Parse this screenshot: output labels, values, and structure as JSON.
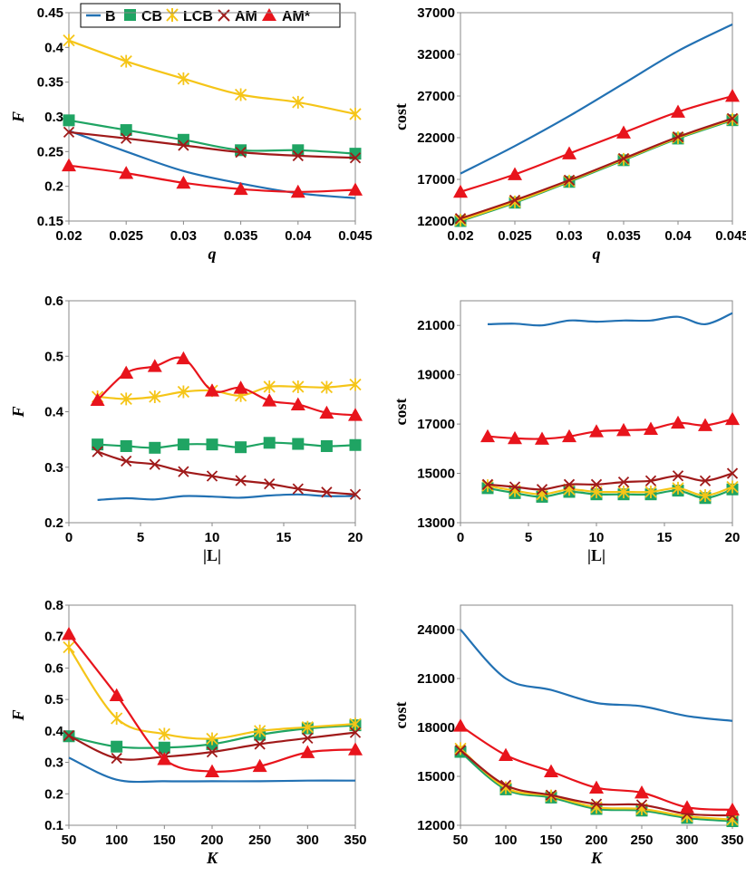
{
  "colors": {
    "B": "#2271b3",
    "CB": "#1fa463",
    "LCB": "#f5c518",
    "AM": "#a01a1a",
    "AMstar": "#e8141c"
  },
  "legend": {
    "items": [
      {
        "key": "B",
        "label": "B"
      },
      {
        "key": "CB",
        "label": "CB"
      },
      {
        "key": "LCB",
        "label": "LCB"
      },
      {
        "key": "AM",
        "label": "AM"
      },
      {
        "key": "AMstar",
        "label": "AM*"
      }
    ]
  },
  "chart_data": [
    {
      "id": "q-F",
      "type": "line",
      "xlabel": "q",
      "ylabel": "F",
      "xlim": [
        0.02,
        0.045
      ],
      "ylim": [
        0.15,
        0.45
      ],
      "xticks": [
        "0.02",
        "0.025",
        "0.03",
        "0.035",
        "0.04",
        "0.045"
      ],
      "yticks": [
        "0.15",
        "0.2",
        "0.25",
        "0.3",
        "0.35",
        "0.4",
        "0.45"
      ],
      "x": [
        0.02,
        0.025,
        0.03,
        0.035,
        0.04,
        0.045
      ],
      "series": [
        {
          "name": "B",
          "values": [
            0.28,
            0.25,
            0.222,
            0.204,
            0.19,
            0.183
          ]
        },
        {
          "name": "CB",
          "values": [
            0.295,
            0.281,
            0.267,
            0.252,
            0.252,
            0.247
          ]
        },
        {
          "name": "LCB",
          "values": [
            0.41,
            0.38,
            0.355,
            0.332,
            0.321,
            0.304
          ]
        },
        {
          "name": "AM",
          "values": [
            0.278,
            0.269,
            0.259,
            0.249,
            0.244,
            0.241
          ]
        },
        {
          "name": "AM*",
          "values": [
            0.23,
            0.219,
            0.205,
            0.196,
            0.192,
            0.195
          ]
        }
      ]
    },
    {
      "id": "q-cost",
      "type": "line",
      "xlabel": "q",
      "ylabel": "cost",
      "xlim": [
        0.02,
        0.045
      ],
      "ylim": [
        12000,
        37000
      ],
      "xticks": [
        "0.02",
        "0.025",
        "0.03",
        "0.035",
        "0.04",
        "0.045"
      ],
      "yticks": [
        "12000",
        "17000",
        "22000",
        "27000",
        "32000",
        "37000"
      ],
      "x": [
        0.02,
        0.025,
        0.03,
        0.035,
        0.04,
        0.045
      ],
      "series": [
        {
          "name": "B",
          "values": [
            17700,
            21000,
            24600,
            28500,
            32400,
            35600
          ]
        },
        {
          "name": "CB",
          "values": [
            12000,
            14200,
            16700,
            19300,
            21900,
            24100
          ]
        },
        {
          "name": "LCB",
          "values": [
            12100,
            14300,
            16800,
            19400,
            22000,
            24200
          ]
        },
        {
          "name": "AM",
          "values": [
            12300,
            14500,
            16900,
            19500,
            22100,
            24300
          ]
        },
        {
          "name": "AM*",
          "values": [
            15500,
            17600,
            20100,
            22600,
            25100,
            27000
          ]
        }
      ]
    },
    {
      "id": "L-F",
      "type": "line",
      "xlabel": "|L|",
      "ylabel": "F",
      "xlim": [
        0,
        20
      ],
      "ylim": [
        0.2,
        0.6
      ],
      "xticks": [
        "0",
        "5",
        "10",
        "15",
        "20"
      ],
      "yticks": [
        "0.2",
        "0.3",
        "0.4",
        "0.5",
        "0.6"
      ],
      "x": [
        2,
        4,
        6,
        8,
        10,
        12,
        14,
        16,
        18,
        20
      ],
      "series": [
        {
          "name": "B",
          "values": [
            0.241,
            0.244,
            0.242,
            0.248,
            0.247,
            0.245,
            0.249,
            0.251,
            0.248,
            0.248
          ]
        },
        {
          "name": "CB",
          "values": [
            0.341,
            0.338,
            0.335,
            0.341,
            0.341,
            0.336,
            0.344,
            0.342,
            0.338,
            0.34
          ]
        },
        {
          "name": "LCB",
          "values": [
            0.427,
            0.423,
            0.427,
            0.436,
            0.438,
            0.429,
            0.445,
            0.445,
            0.444,
            0.449
          ]
        },
        {
          "name": "AM",
          "values": [
            0.328,
            0.311,
            0.305,
            0.292,
            0.284,
            0.276,
            0.27,
            0.261,
            0.255,
            0.251
          ]
        },
        {
          "name": "AM*",
          "values": [
            0.421,
            0.47,
            0.482,
            0.496,
            0.438,
            0.443,
            0.42,
            0.413,
            0.398,
            0.394
          ]
        }
      ]
    },
    {
      "id": "L-cost",
      "type": "line",
      "xlabel": "|L|",
      "ylabel": "cost",
      "xlim": [
        0,
        20
      ],
      "ylim": [
        13000,
        22000
      ],
      "xticks": [
        "0",
        "5",
        "10",
        "15",
        "20"
      ],
      "yticks": [
        "13000",
        "15000",
        "17000",
        "19000",
        "21000"
      ],
      "x": [
        2,
        4,
        6,
        8,
        10,
        12,
        14,
        16,
        18,
        20
      ],
      "series": [
        {
          "name": "B",
          "values": [
            21050,
            21070,
            21000,
            21200,
            21150,
            21200,
            21200,
            21350,
            21050,
            21500
          ]
        },
        {
          "name": "CB",
          "values": [
            14400,
            14200,
            14050,
            14250,
            14150,
            14150,
            14150,
            14300,
            14000,
            14350
          ]
        },
        {
          "name": "LCB",
          "values": [
            14500,
            14300,
            14150,
            14350,
            14250,
            14250,
            14250,
            14400,
            14100,
            14450
          ]
        },
        {
          "name": "AM",
          "values": [
            14550,
            14450,
            14350,
            14550,
            14550,
            14650,
            14700,
            14900,
            14700,
            15000
          ]
        },
        {
          "name": "AM*",
          "values": [
            16500,
            16420,
            16400,
            16500,
            16700,
            16750,
            16800,
            17050,
            16950,
            17200
          ]
        }
      ]
    },
    {
      "id": "K-F",
      "type": "line",
      "xlabel": "K",
      "ylabel": "F",
      "xlim": [
        50,
        350
      ],
      "ylim": [
        0.1,
        0.8
      ],
      "xticks": [
        "50",
        "100",
        "150",
        "200",
        "250",
        "300",
        "350"
      ],
      "yticks": [
        "0.1",
        "0.2",
        "0.3",
        "0.4",
        "0.5",
        "0.6",
        "0.7",
        "0.8"
      ],
      "x": [
        50,
        100,
        150,
        200,
        250,
        300,
        350
      ],
      "series": [
        {
          "name": "B",
          "values": [
            0.315,
            0.245,
            0.24,
            0.24,
            0.24,
            0.242,
            0.242
          ]
        },
        {
          "name": "CB",
          "values": [
            0.383,
            0.35,
            0.347,
            0.358,
            0.388,
            0.408,
            0.418
          ]
        },
        {
          "name": "LCB",
          "values": [
            0.666,
            0.44,
            0.39,
            0.375,
            0.4,
            0.412,
            0.422
          ]
        },
        {
          "name": "AM",
          "values": [
            0.385,
            0.313,
            0.318,
            0.333,
            0.358,
            0.377,
            0.395
          ]
        },
        {
          "name": "AM*",
          "values": [
            0.708,
            0.513,
            0.31,
            0.271,
            0.288,
            0.332,
            0.341
          ]
        }
      ]
    },
    {
      "id": "K-cost",
      "type": "line",
      "xlabel": "K",
      "ylabel": "cost",
      "xlim": [
        50,
        350
      ],
      "ylim": [
        12000,
        25500
      ],
      "xticks": [
        "50",
        "100",
        "150",
        "200",
        "250",
        "300",
        "350"
      ],
      "yticks": [
        "12000",
        "15000",
        "18000",
        "21000",
        "24000"
      ],
      "x": [
        50,
        100,
        150,
        200,
        250,
        300,
        350
      ],
      "series": [
        {
          "name": "B",
          "values": [
            24000,
            21000,
            20300,
            19500,
            19300,
            18700,
            18400
          ]
        },
        {
          "name": "CB",
          "values": [
            16500,
            14200,
            13700,
            13000,
            12900,
            12450,
            12250
          ]
        },
        {
          "name": "LCB",
          "values": [
            16700,
            14300,
            13800,
            13100,
            13000,
            12550,
            12350
          ]
        },
        {
          "name": "AM",
          "values": [
            16600,
            14450,
            13850,
            13300,
            13250,
            12700,
            12600
          ]
        },
        {
          "name": "AM*",
          "values": [
            18100,
            16300,
            15300,
            14300,
            14000,
            13100,
            12950
          ]
        }
      ]
    }
  ]
}
